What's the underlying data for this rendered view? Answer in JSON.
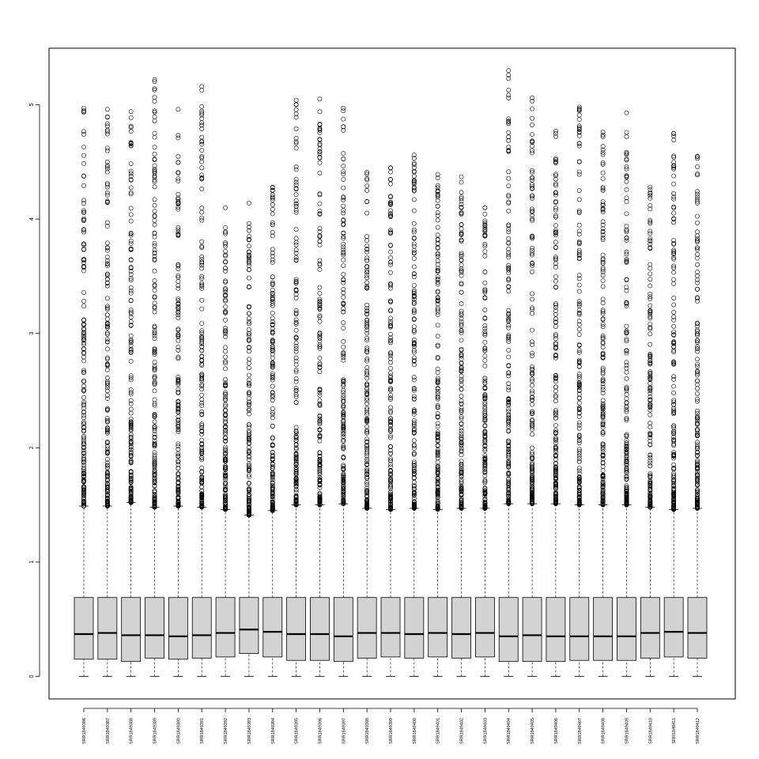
{
  "chart_data": {
    "type": "boxplot",
    "title": "",
    "xlabel": "",
    "ylabel": "",
    "ylim": [
      -0.22,
      5.45
    ],
    "yticks": [
      0,
      1,
      2,
      3,
      4,
      5
    ],
    "grid": false,
    "legend": "none",
    "box_fill": "#d3d3d3",
    "categories": [
      "SRR1849386",
      "SRR1849387",
      "SRR1849388",
      "SRR1849389",
      "SRR1849390",
      "SRR1849391",
      "SRR1849392",
      "SRR1849393",
      "SRR1849394",
      "SRR1849395",
      "SRR1849396",
      "SRR1849397",
      "SRR1849398",
      "SRR1849399",
      "SRR1849400",
      "SRR1849401",
      "SRR1849402",
      "SRR1849403",
      "SRR1849404",
      "SRR1849405",
      "SRR1849406",
      "SRR1849407",
      "SRR1849408",
      "SRR1849409",
      "SRR1849410",
      "SRR1849411",
      "SRR1849412"
    ],
    "boxes": [
      {
        "min": 0,
        "q1": 0.15,
        "median": 0.37,
        "q3": 0.69,
        "whisker_high": 1.49,
        "max_outlier": 4.97
      },
      {
        "min": 0,
        "q1": 0.15,
        "median": 0.38,
        "q3": 0.69,
        "whisker_high": 1.49,
        "max_outlier": 4.96
      },
      {
        "min": 0,
        "q1": 0.13,
        "median": 0.36,
        "q3": 0.69,
        "whisker_high": 1.52,
        "max_outlier": 4.94
      },
      {
        "min": 0,
        "q1": 0.16,
        "median": 0.36,
        "q3": 0.69,
        "whisker_high": 1.48,
        "max_outlier": 5.22
      },
      {
        "min": 0,
        "q1": 0.15,
        "median": 0.35,
        "q3": 0.69,
        "whisker_high": 1.49,
        "max_outlier": 4.96
      },
      {
        "min": 0,
        "q1": 0.16,
        "median": 0.36,
        "q3": 0.69,
        "whisker_high": 1.48,
        "max_outlier": 5.16
      },
      {
        "min": 0,
        "q1": 0.17,
        "median": 0.38,
        "q3": 0.69,
        "whisker_high": 1.46,
        "max_outlier": 4.1
      },
      {
        "min": 0,
        "q1": 0.2,
        "median": 0.41,
        "q3": 0.69,
        "whisker_high": 1.41,
        "max_outlier": 4.14
      },
      {
        "min": 0,
        "q1": 0.17,
        "median": 0.39,
        "q3": 0.69,
        "whisker_high": 1.45,
        "max_outlier": 4.28
      },
      {
        "min": 0,
        "q1": 0.14,
        "median": 0.37,
        "q3": 0.69,
        "whisker_high": 1.5,
        "max_outlier": 5.04
      },
      {
        "min": 0,
        "q1": 0.14,
        "median": 0.37,
        "q3": 0.69,
        "whisker_high": 1.5,
        "max_outlier": 5.05
      },
      {
        "min": 0,
        "q1": 0.13,
        "median": 0.35,
        "q3": 0.69,
        "whisker_high": 1.51,
        "max_outlier": 4.97
      },
      {
        "min": 0,
        "q1": 0.16,
        "median": 0.38,
        "q3": 0.69,
        "whisker_high": 1.47,
        "max_outlier": 4.41
      },
      {
        "min": 0,
        "q1": 0.17,
        "median": 0.38,
        "q3": 0.69,
        "whisker_high": 1.46,
        "max_outlier": 4.45
      },
      {
        "min": 0,
        "q1": 0.16,
        "median": 0.37,
        "q3": 0.69,
        "whisker_high": 1.47,
        "max_outlier": 4.56
      },
      {
        "min": 0,
        "q1": 0.17,
        "median": 0.38,
        "q3": 0.69,
        "whisker_high": 1.46,
        "max_outlier": 4.39
      },
      {
        "min": 0,
        "q1": 0.16,
        "median": 0.37,
        "q3": 0.69,
        "whisker_high": 1.47,
        "max_outlier": 4.37
      },
      {
        "min": 0,
        "q1": 0.17,
        "median": 0.38,
        "q3": 0.69,
        "whisker_high": 1.47,
        "max_outlier": 4.1
      },
      {
        "min": 0,
        "q1": 0.13,
        "median": 0.35,
        "q3": 0.69,
        "whisker_high": 1.51,
        "max_outlier": 5.3
      },
      {
        "min": 0,
        "q1": 0.13,
        "median": 0.36,
        "q3": 0.69,
        "whisker_high": 1.51,
        "max_outlier": 5.06
      },
      {
        "min": 0,
        "q1": 0.13,
        "median": 0.35,
        "q3": 0.69,
        "whisker_high": 1.51,
        "max_outlier": 4.77
      },
      {
        "min": 0,
        "q1": 0.14,
        "median": 0.35,
        "q3": 0.69,
        "whisker_high": 1.5,
        "max_outlier": 4.98
      },
      {
        "min": 0,
        "q1": 0.14,
        "median": 0.35,
        "q3": 0.69,
        "whisker_high": 1.5,
        "max_outlier": 4.76
      },
      {
        "min": 0,
        "q1": 0.14,
        "median": 0.35,
        "q3": 0.69,
        "whisker_high": 1.5,
        "max_outlier": 4.93
      },
      {
        "min": 0,
        "q1": 0.16,
        "median": 0.38,
        "q3": 0.69,
        "whisker_high": 1.48,
        "max_outlier": 4.28
      },
      {
        "min": 0,
        "q1": 0.17,
        "median": 0.39,
        "q3": 0.69,
        "whisker_high": 1.46,
        "max_outlier": 4.75
      },
      {
        "min": 0,
        "q1": 0.16,
        "median": 0.38,
        "q3": 0.69,
        "whisker_high": 1.47,
        "max_outlier": 4.55
      }
    ]
  }
}
